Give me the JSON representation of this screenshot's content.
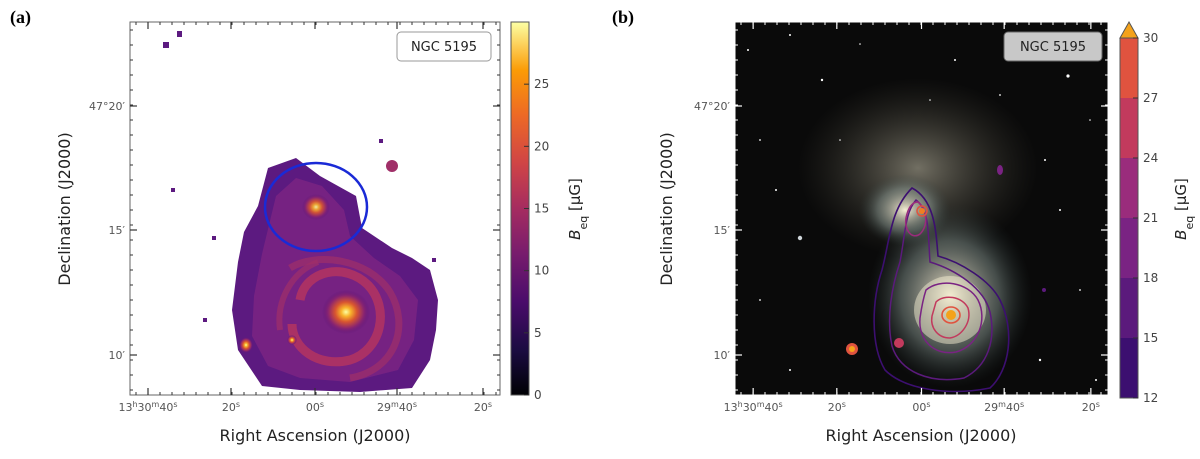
{
  "chart_data": [
    {
      "type": "heatmap",
      "panel": "(a)",
      "title": "NGC 5195",
      "xlabel": "Right Ascension (J2000)",
      "ylabel": "Declination (J2000)",
      "x_ticks": [
        "13h30m40s",
        "20s",
        "00s",
        "29m40s",
        "20s"
      ],
      "y_ticks": [
        "47°20′",
        "15′",
        "10′"
      ],
      "colorbar": {
        "label": "B_eq [μG]",
        "range": [
          0,
          30
        ],
        "ticks": [
          0,
          5,
          10,
          15,
          20,
          25
        ],
        "colormap": "inferno"
      },
      "features": [
        {
          "name": "NGC 5195 core (circled region)",
          "marker": "blue-circle"
        },
        {
          "name": "M51 core",
          "marker": "bright-spot"
        }
      ]
    },
    {
      "type": "heatmap",
      "panel": "(b)",
      "title": "NGC 5195",
      "xlabel": "Right Ascension (J2000)",
      "ylabel": "Declination (J2000)",
      "x_ticks": [
        "13h30m40s",
        "20s",
        "00s",
        "29m40s",
        "20s"
      ],
      "y_ticks": [
        "47°20′",
        "15′",
        "10′"
      ],
      "colorbar": {
        "label": "B_eq [μG]",
        "range": [
          12,
          30
        ],
        "ticks": [
          12,
          15,
          18,
          21,
          24,
          27,
          30
        ],
        "discrete_colors": [
          "#3c0f70",
          "#5b1a7c",
          "#7a2383",
          "#9a2c7c",
          "#c23a5d",
          "#e0533f",
          "#f07e22"
        ],
        "extend": "max",
        "extend_color": "#f4a21b"
      },
      "contour_levels": [
        12,
        15,
        18,
        21,
        24,
        27,
        30
      ]
    }
  ],
  "colors": {
    "circle": "#1a2ad6",
    "background_b": "#0a0a0a"
  }
}
